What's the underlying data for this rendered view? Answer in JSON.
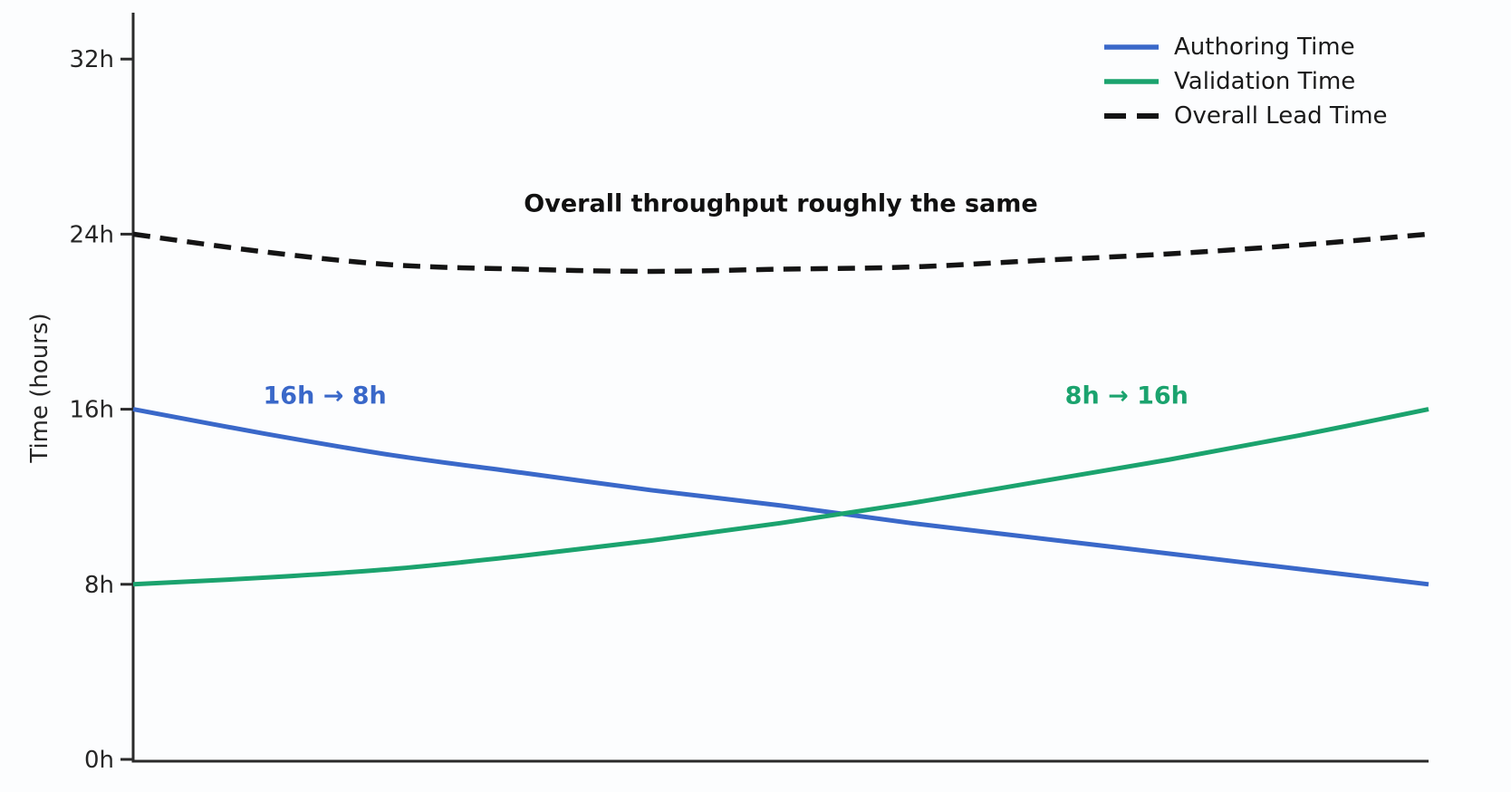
{
  "chart_data": {
    "type": "line",
    "title": "",
    "xlabel": "",
    "ylabel": "Time (hours)",
    "ylim": [
      0,
      34
    ],
    "grid": false,
    "legend_position": "upper right",
    "x_percent": [
      0,
      10,
      20,
      30,
      40,
      50,
      60,
      70,
      80,
      90,
      100
    ],
    "series": [
      {
        "name": "Authoring Time",
        "color": "#3a68c9",
        "style": "solid",
        "values": [
          16,
          14.9,
          13.9,
          13.1,
          12.3,
          11.6,
          10.8,
          10.1,
          9.4,
          8.7,
          8
        ]
      },
      {
        "name": "Validation Time",
        "color": "#1ba36e",
        "style": "solid",
        "values": [
          8,
          8.3,
          8.7,
          9.3,
          10.0,
          10.8,
          11.7,
          12.7,
          13.7,
          14.8,
          16
        ]
      },
      {
        "name": "Overall Lead Time",
        "color": "#141414",
        "style": "dashed",
        "values": [
          24,
          23.2,
          22.6,
          22.4,
          22.3,
          22.4,
          22.5,
          22.8,
          23.1,
          23.5,
          24
        ]
      }
    ],
    "yticks": [
      {
        "value": 0,
        "label": "0h"
      },
      {
        "value": 8,
        "label": "8h"
      },
      {
        "value": 16,
        "label": "16h"
      },
      {
        "value": 24,
        "label": "24h"
      },
      {
        "value": 32,
        "label": "32h"
      }
    ],
    "annotations": [
      {
        "text": "Overall throughput roughly the same",
        "x_percent": 50,
        "y_hours": 25.4,
        "color": "#111111",
        "bold": true
      },
      {
        "text": "16h → 8h",
        "x_percent": 14.8,
        "y_hours": 16.6,
        "color": "#3a68c9",
        "bold": true
      },
      {
        "text": "8h → 16h",
        "x_percent": 76.7,
        "y_hours": 16.6,
        "color": "#1ba36e",
        "bold": true
      }
    ]
  }
}
